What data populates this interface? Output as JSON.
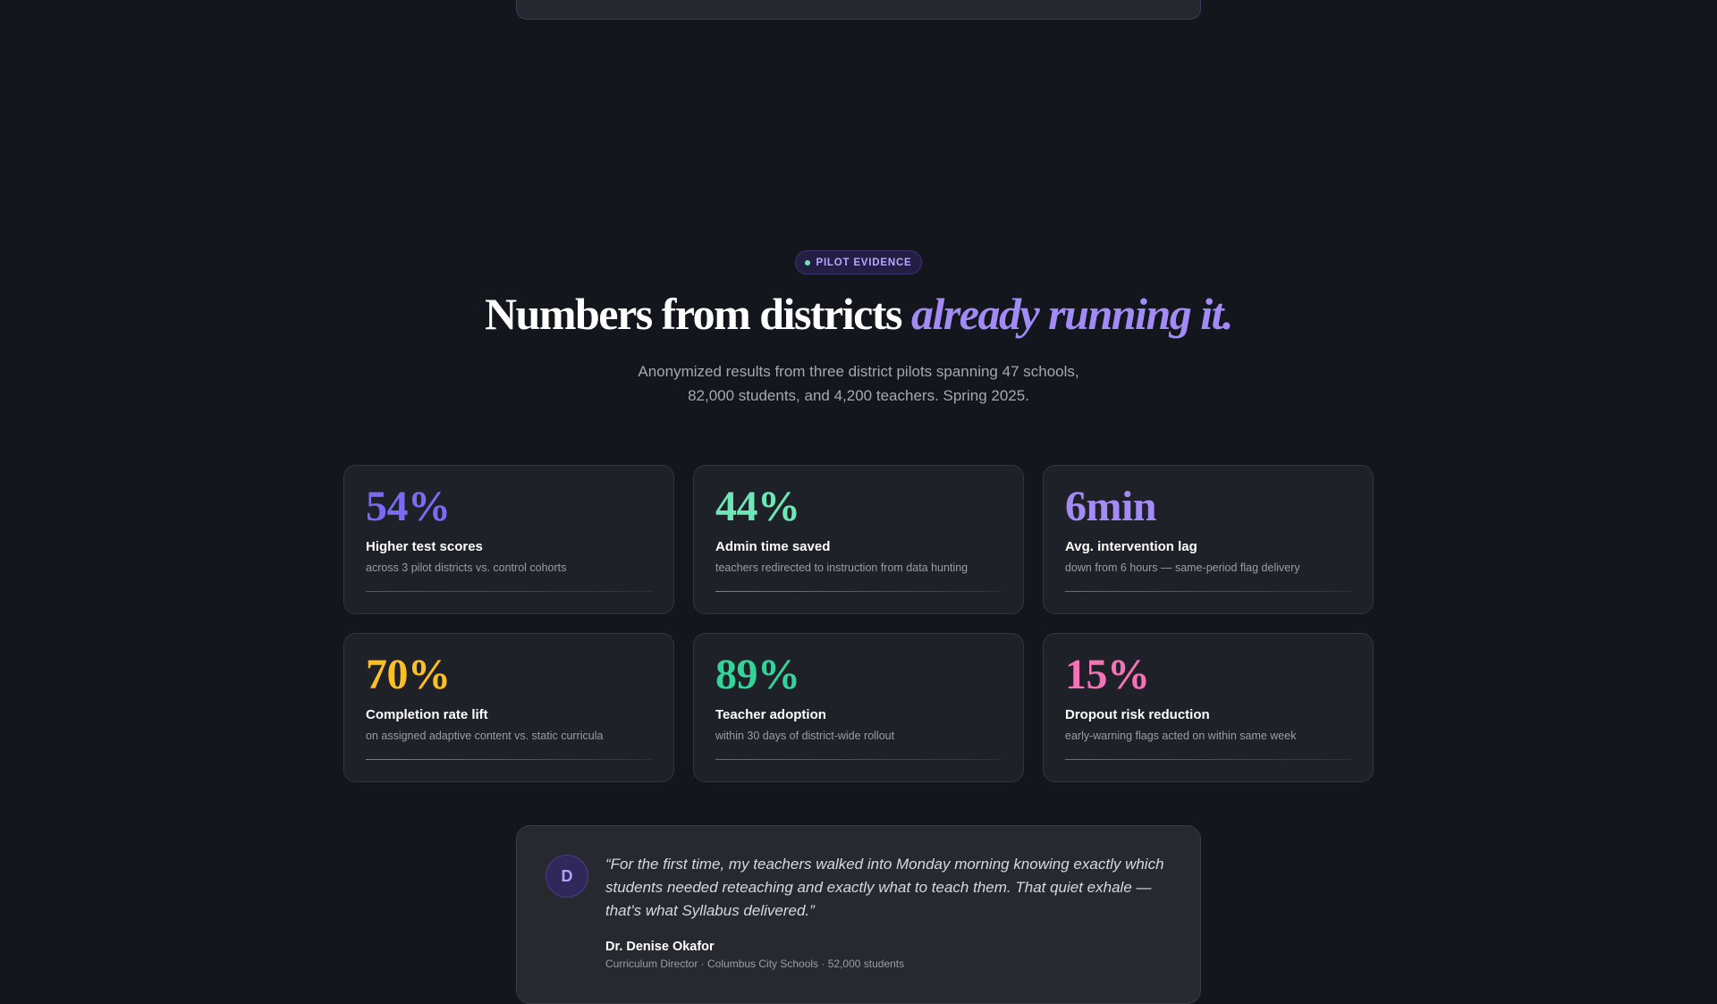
{
  "section": {
    "badge": "PILOT EVIDENCE",
    "heading": {
      "plain": "Numbers from districts",
      "accent": "already running it."
    },
    "subtitle": [
      "Anonymized results from three district pilots spanning 47 schools,",
      "82,000 students, and 4,200 teachers. Spring 2025."
    ],
    "stats": [
      {
        "value": "54%",
        "label": "Higher test scores",
        "description": "across 3 pilot districts vs. control cohorts"
      },
      {
        "value": "44%",
        "label": "Admin time saved",
        "description": "teachers redirected to instruction from data hunting"
      },
      {
        "value": "6min",
        "label": "Avg. intervention lag",
        "description": "down from 6 hours — same-period flag delivery"
      },
      {
        "value": "70%",
        "label": "Completion rate lift",
        "description": "on assigned adaptive content vs. static curricula"
      },
      {
        "value": "89%",
        "label": "Teacher adoption",
        "description": "within 30 days of district-wide rollout"
      },
      {
        "value": "15%",
        "label": "Dropout risk reduction",
        "description": "early-warning flags acted on within same week"
      }
    ],
    "testimonial": {
      "avatar": "D",
      "quote": "“For the first time, my teachers walked into Monday morning knowing exactly which students needed reteaching and exactly what to teach them. That quiet exhale — that's what Syllabus delivered.”",
      "name": "Dr. Denise Okafor",
      "role": "Curriculum Director · Columbus City Schools · 52,000 students"
    }
  }
}
